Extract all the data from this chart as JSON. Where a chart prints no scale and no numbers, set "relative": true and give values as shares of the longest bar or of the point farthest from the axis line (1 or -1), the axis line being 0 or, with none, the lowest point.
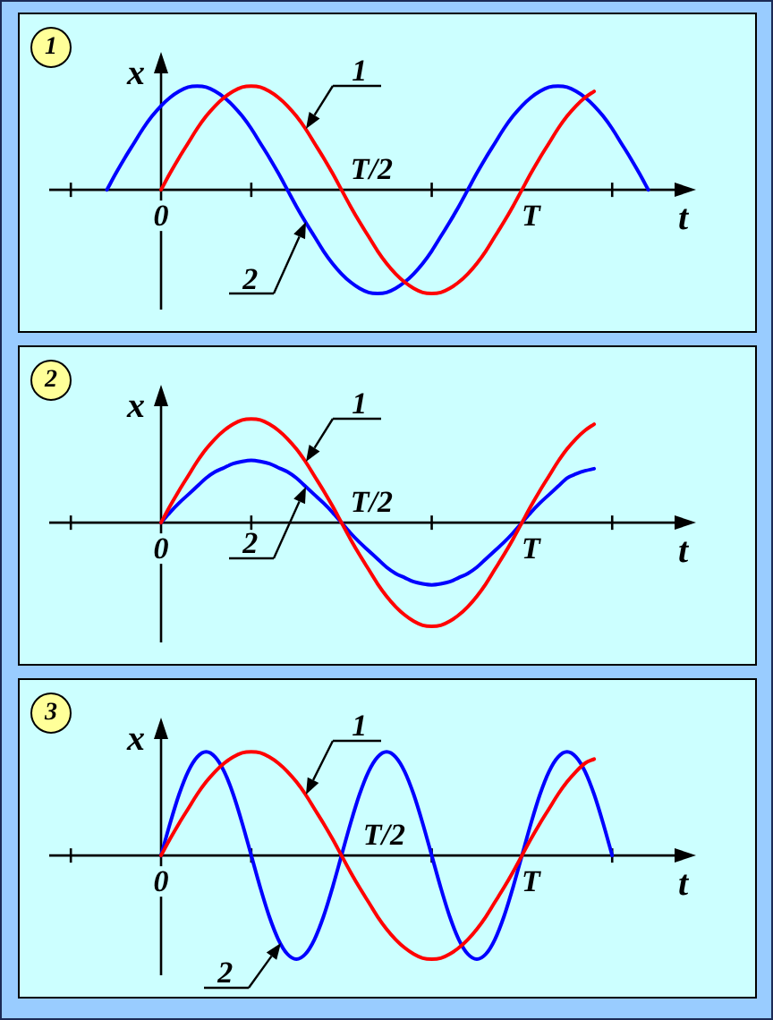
{
  "chart_data": [
    {
      "type": "line",
      "title": "1",
      "xlabel": "t",
      "ylabel": "x",
      "relative": true,
      "annotations": [
        "T/2"
      ],
      "categories": [
        null,
        null,
        null,
        null,
        null,
        null,
        null,
        null,
        null,
        null,
        null,
        null,
        "0",
        null,
        null,
        null,
        null,
        null,
        null,
        null,
        null,
        null,
        null,
        null,
        null,
        null,
        null,
        null,
        null,
        null,
        null,
        null,
        null,
        null,
        null,
        null,
        null,
        null,
        null,
        null,
        null,
        null,
        null,
        null,
        null,
        null,
        null,
        null,
        null,
        null,
        null,
        null,
        null,
        "T",
        null,
        null,
        null,
        null,
        null,
        null,
        null,
        null,
        null,
        null,
        null,
        null,
        null,
        null,
        null,
        null,
        null,
        null
      ],
      "series": [
        {
          "name": "1",
          "color": "#ff0000",
          "values": [
            null,
            null,
            null,
            null,
            null,
            null,
            null,
            null,
            null,
            null,
            null,
            null,
            0,
            0.16,
            0.31,
            0.45,
            0.59,
            0.71,
            0.81,
            0.89,
            0.95,
            0.99,
            1,
            0.99,
            0.95,
            0.89,
            0.81,
            0.71,
            0.59,
            0.45,
            0.31,
            0.16,
            0,
            -0.16,
            -0.31,
            -0.45,
            -0.59,
            -0.71,
            -0.81,
            -0.89,
            -0.95,
            -0.99,
            -1,
            -0.99,
            -0.95,
            -0.89,
            -0.81,
            -0.71,
            -0.59,
            -0.45,
            -0.31,
            -0.16,
            0,
            0.16,
            0.31,
            0.45,
            0.59,
            0.71,
            0.81,
            0.89,
            0.95,
            null,
            null,
            null,
            null,
            null,
            null,
            null,
            null,
            null,
            null,
            null
          ]
        },
        {
          "name": "2",
          "color": "#0000ff",
          "values": [
            null,
            null,
            null,
            null,
            null,
            null,
            0,
            0.16,
            0.31,
            0.45,
            0.59,
            0.71,
            0.81,
            0.89,
            0.95,
            0.99,
            1,
            0.99,
            0.95,
            0.89,
            0.81,
            0.71,
            0.59,
            0.45,
            0.31,
            0.16,
            0,
            -0.16,
            -0.31,
            -0.45,
            -0.59,
            -0.71,
            -0.81,
            -0.89,
            -0.95,
            -0.99,
            -1,
            -0.99,
            -0.95,
            -0.89,
            -0.81,
            -0.71,
            -0.59,
            -0.45,
            -0.31,
            -0.16,
            0,
            0.16,
            0.31,
            0.45,
            0.59,
            0.71,
            0.81,
            0.89,
            0.95,
            0.99,
            1,
            0.99,
            0.95,
            0.89,
            0.81,
            0.71,
            0.59,
            0.45,
            0.31,
            0.16,
            0,
            null,
            null,
            null,
            null,
            null
          ]
        }
      ]
    },
    {
      "type": "line",
      "title": "2",
      "xlabel": "t",
      "ylabel": "x",
      "relative": true,
      "annotations": [
        "T/2"
      ],
      "categories": [
        null,
        null,
        null,
        null,
        null,
        null,
        null,
        null,
        null,
        null,
        null,
        null,
        "0",
        null,
        null,
        null,
        null,
        null,
        null,
        null,
        null,
        null,
        null,
        null,
        null,
        null,
        null,
        null,
        null,
        null,
        null,
        null,
        null,
        null,
        null,
        null,
        null,
        null,
        null,
        null,
        null,
        null,
        null,
        null,
        null,
        null,
        null,
        null,
        null,
        null,
        null,
        null,
        null,
        "T",
        null,
        null,
        null,
        null,
        null,
        null,
        null,
        null,
        null,
        null,
        null,
        null,
        null,
        null,
        null,
        null,
        null,
        null
      ],
      "series": [
        {
          "name": "1",
          "color": "#ff0000",
          "values": [
            null,
            null,
            null,
            null,
            null,
            null,
            null,
            null,
            null,
            null,
            null,
            null,
            0,
            0.16,
            0.31,
            0.45,
            0.59,
            0.71,
            0.81,
            0.89,
            0.95,
            0.99,
            1,
            0.99,
            0.95,
            0.89,
            0.81,
            0.71,
            0.59,
            0.45,
            0.31,
            0.16,
            0,
            -0.16,
            -0.31,
            -0.45,
            -0.59,
            -0.71,
            -0.81,
            -0.89,
            -0.95,
            -0.99,
            -1,
            -0.99,
            -0.95,
            -0.89,
            -0.81,
            -0.71,
            -0.59,
            -0.45,
            -0.31,
            -0.16,
            0,
            0.16,
            0.31,
            0.45,
            0.59,
            0.71,
            0.81,
            0.89,
            0.95,
            null,
            null,
            null,
            null,
            null,
            null,
            null,
            null,
            null,
            null,
            null
          ]
        },
        {
          "name": "2",
          "color": "#0000ff",
          "values": [
            null,
            null,
            null,
            null,
            null,
            null,
            null,
            null,
            null,
            null,
            null,
            null,
            0,
            0.1,
            0.19,
            0.27,
            0.35,
            0.43,
            0.49,
            0.53,
            0.57,
            0.59,
            0.6,
            0.59,
            0.57,
            0.53,
            0.49,
            0.43,
            0.35,
            0.27,
            0.19,
            0.1,
            0,
            -0.1,
            -0.19,
            -0.27,
            -0.35,
            -0.43,
            -0.49,
            -0.53,
            -0.57,
            -0.59,
            -0.6,
            -0.59,
            -0.57,
            -0.53,
            -0.49,
            -0.43,
            -0.35,
            -0.27,
            -0.19,
            -0.1,
            0,
            0.1,
            0.19,
            0.27,
            0.35,
            0.43,
            0.47,
            0.5,
            0.52,
            null,
            null,
            null,
            null,
            null,
            null,
            null,
            null,
            null,
            null,
            null
          ]
        }
      ]
    },
    {
      "type": "line",
      "title": "3",
      "xlabel": "t",
      "ylabel": "x",
      "relative": true,
      "annotations": [
        "T/2"
      ],
      "categories": [
        null,
        null,
        null,
        null,
        null,
        null,
        null,
        null,
        null,
        null,
        null,
        null,
        "0",
        null,
        null,
        null,
        null,
        null,
        null,
        null,
        null,
        null,
        null,
        null,
        null,
        null,
        null,
        null,
        null,
        null,
        null,
        null,
        null,
        null,
        null,
        null,
        null,
        null,
        null,
        null,
        null,
        null,
        null,
        null,
        null,
        null,
        null,
        null,
        null,
        null,
        null,
        null,
        null,
        "T",
        null,
        null,
        null,
        null,
        null,
        null,
        null,
        null,
        null,
        null,
        null,
        null,
        null,
        null,
        null,
        null,
        null,
        null
      ],
      "series": [
        {
          "name": "1",
          "color": "#ff0000",
          "values": [
            null,
            null,
            null,
            null,
            null,
            null,
            null,
            null,
            null,
            null,
            null,
            null,
            0,
            0.16,
            0.31,
            0.45,
            0.59,
            0.71,
            0.81,
            0.89,
            0.95,
            0.99,
            1,
            0.99,
            0.95,
            0.89,
            0.81,
            0.71,
            0.59,
            0.45,
            0.31,
            0.16,
            0,
            -0.16,
            -0.31,
            -0.45,
            -0.59,
            -0.71,
            -0.81,
            -0.89,
            -0.95,
            -0.99,
            -1,
            -0.99,
            -0.95,
            -0.89,
            -0.81,
            -0.71,
            -0.59,
            -0.45,
            -0.31,
            -0.16,
            0,
            0.16,
            0.31,
            0.45,
            0.59,
            0.71,
            0.81,
            0.89,
            0.93,
            null,
            null,
            null,
            null,
            null,
            null,
            null,
            null,
            null,
            null,
            null
          ]
        },
        {
          "name": "2",
          "color": "#0000ff",
          "values": [
            null,
            null,
            null,
            null,
            null,
            null,
            null,
            null,
            null,
            null,
            null,
            null,
            0,
            0.31,
            0.59,
            0.81,
            0.95,
            1,
            0.95,
            0.81,
            0.59,
            0.31,
            0,
            -0.31,
            -0.59,
            -0.81,
            -0.95,
            -1,
            -0.95,
            -0.81,
            -0.59,
            -0.31,
            0,
            0.31,
            0.59,
            0.81,
            0.95,
            1,
            0.95,
            0.81,
            0.59,
            0.31,
            0,
            -0.31,
            -0.59,
            -0.81,
            -0.95,
            -1,
            -0.95,
            -0.81,
            -0.59,
            -0.31,
            0,
            0.31,
            0.59,
            0.81,
            0.95,
            1,
            0.95,
            0.81,
            0.59,
            0.31,
            0,
            null,
            null,
            null,
            null,
            null,
            null,
            null,
            null,
            null
          ]
        }
      ]
    }
  ]
}
